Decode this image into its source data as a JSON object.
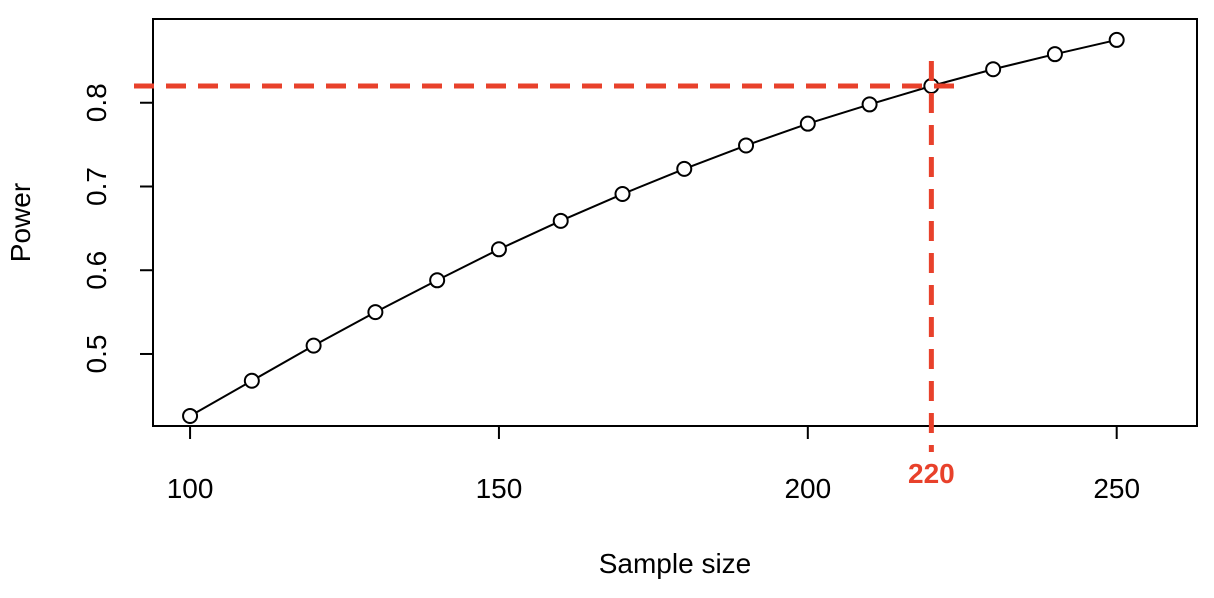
{
  "chart_data": {
    "type": "line",
    "title": "",
    "xlabel": "Sample size",
    "ylabel": "Power",
    "xlim": [
      94,
      263
    ],
    "ylim": [
      0.414,
      0.9
    ],
    "grid": false,
    "x_ticks": [
      {
        "value": 100,
        "label": "100"
      },
      {
        "value": 150,
        "label": "150"
      },
      {
        "value": 200,
        "label": "200"
      },
      {
        "value": 250,
        "label": "250"
      }
    ],
    "y_ticks": [
      {
        "value": 0.5,
        "label": "0.5"
      },
      {
        "value": 0.6,
        "label": "0.6"
      },
      {
        "value": 0.7,
        "label": "0.7"
      },
      {
        "value": 0.8,
        "label": "0.8"
      }
    ],
    "series": [
      {
        "marker": "open-circle",
        "color": "#000000",
        "x": [
          100,
          110,
          120,
          130,
          140,
          150,
          160,
          170,
          180,
          190,
          200,
          210,
          220,
          230,
          240,
          250
        ],
        "y": [
          0.426,
          0.468,
          0.51,
          0.55,
          0.588,
          0.625,
          0.659,
          0.691,
          0.721,
          0.749,
          0.775,
          0.798,
          0.82,
          0.84,
          0.858,
          0.875
        ]
      }
    ],
    "reference_lines": {
      "color": "#e8412b",
      "style": "dashed",
      "x": 220,
      "y": 0.82,
      "x_label": "220"
    }
  }
}
